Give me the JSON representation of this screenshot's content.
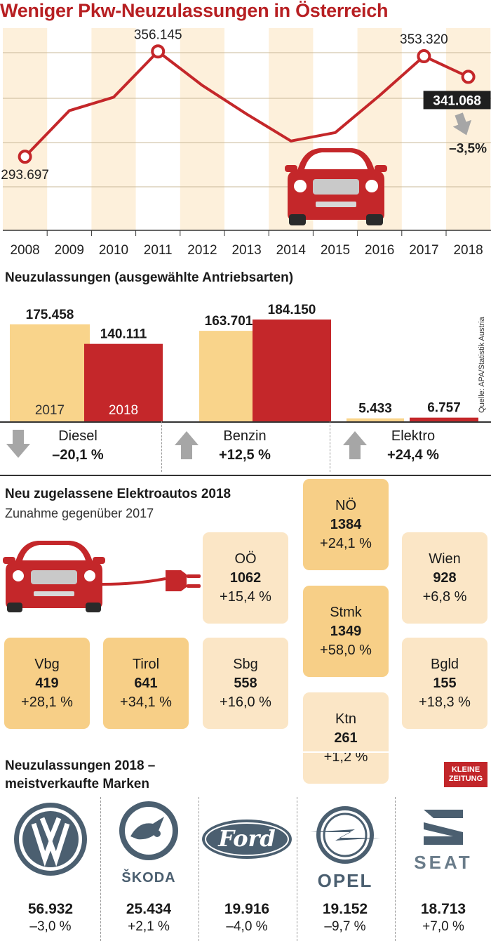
{
  "title": "Weniger Pkw-Neuzulassungen in Österreich",
  "colors": {
    "red": "#c4272a",
    "light_band": "#fdf0db",
    "light_bar": "#f9d48b",
    "grey": "#a6a6a6"
  },
  "chart_data": [
    {
      "type": "line",
      "title": "Weniger Pkw-Neuzulassungen in Österreich",
      "x": [
        "2008",
        "2009",
        "2010",
        "2011",
        "2012",
        "2013",
        "2014",
        "2015",
        "2016",
        "2017",
        "2018"
      ],
      "values": [
        293697,
        321000,
        329000,
        356145,
        336000,
        319000,
        303000,
        308000,
        330000,
        353320,
        341068
      ],
      "labels": [
        {
          "index": 0,
          "text": "293.697"
        },
        {
          "index": 3,
          "text": "356.145"
        },
        {
          "index": 9,
          "text": "353.320"
        },
        {
          "index": 10,
          "text": "341.068",
          "highlight": true
        }
      ],
      "change_label": "–3,5%",
      "ylim": [
        250000,
        370000
      ]
    },
    {
      "type": "bar",
      "title": "Neuzulassungen (ausgewählte Antriebsarten)",
      "categories": [
        "Diesel",
        "Benzin",
        "Elektro"
      ],
      "series": [
        {
          "name": "2017",
          "values": [
            175458,
            163701,
            5433
          ],
          "labels": [
            "175.458",
            "163.701",
            "5.433"
          ]
        },
        {
          "name": "2018",
          "values": [
            140111,
            184150,
            6757
          ],
          "labels": [
            "140.111",
            "184.150",
            "6.757"
          ]
        }
      ],
      "changes": [
        {
          "name": "Diesel",
          "change": "–20,1 %",
          "direction": "down"
        },
        {
          "name": "Benzin",
          "change": "+12,5 %",
          "direction": "up"
        },
        {
          "name": "Elektro",
          "change": "+24,4 %",
          "direction": "up"
        }
      ],
      "source": "Quelle: APA/Statistik Austria"
    }
  ],
  "elektro": {
    "title": "Neu zugelassene Elektroautos 2018",
    "subtitle": "Zunahme gegenüber 2017",
    "regions": [
      {
        "name": "NÖ",
        "value": "1384",
        "change": "+24,1 %",
        "tone": "dark"
      },
      {
        "name": "OÖ",
        "value": "1062",
        "change": "+15,4 %",
        "tone": "light"
      },
      {
        "name": "Wien",
        "value": "928",
        "change": "+6,8 %",
        "tone": "light"
      },
      {
        "name": "Stmk",
        "value": "1349",
        "change": "+58,0 %",
        "tone": "dark"
      },
      {
        "name": "Vbg",
        "value": "419",
        "change": "+28,1 %",
        "tone": "dark"
      },
      {
        "name": "Tirol",
        "value": "641",
        "change": "+34,1 %",
        "tone": "dark"
      },
      {
        "name": "Sbg",
        "value": "558",
        "change": "+16,0 %",
        "tone": "light"
      },
      {
        "name": "Bgld",
        "value": "155",
        "change": "+18,3 %",
        "tone": "light"
      },
      {
        "name": "Ktn",
        "value": "261",
        "change": "+1,2 %",
        "tone": "light"
      }
    ]
  },
  "brands": {
    "title_line1": "Neuzulassungen 2018  –",
    "title_line2": "meistverkaufte Marken",
    "publisher_line1": "KLEINE",
    "publisher_line2": "ZEITUNG",
    "items": [
      {
        "name": "VW",
        "logo_text": "",
        "value": "56.932",
        "change": "–3,0 %"
      },
      {
        "name": "Skoda",
        "logo_text": "ŠKODA",
        "value": "25.434",
        "change": "+2,1 %"
      },
      {
        "name": "Ford",
        "logo_text": "Ford",
        "value": "19.916",
        "change": "–4,0 %"
      },
      {
        "name": "Opel",
        "logo_text": "OPEL",
        "value": "19.152",
        "change": "–9,7 %"
      },
      {
        "name": "Seat",
        "logo_text": "SEAT",
        "value": "18.713",
        "change": "+7,0 %"
      }
    ]
  }
}
